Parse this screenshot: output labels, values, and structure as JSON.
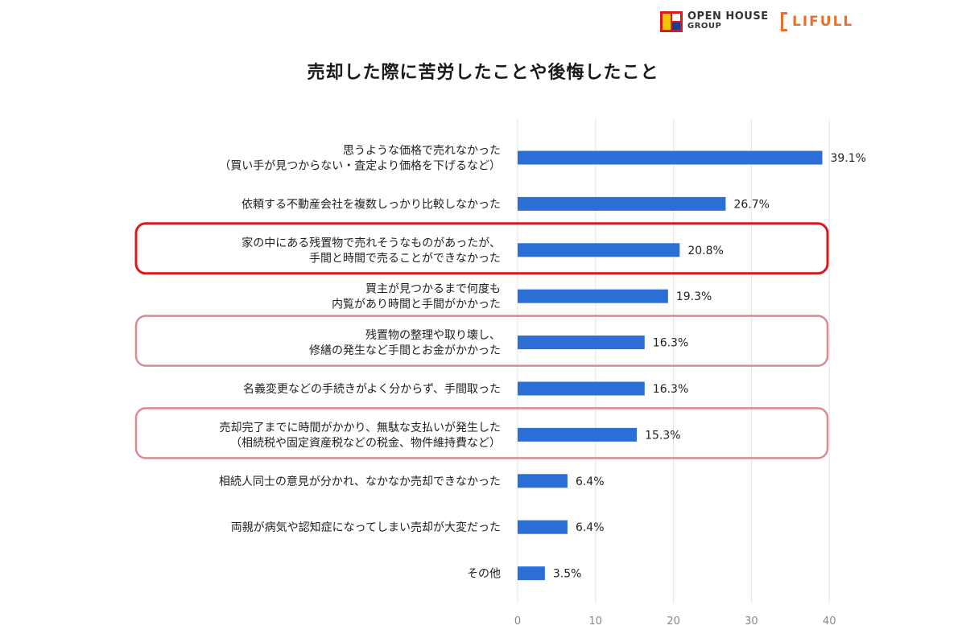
{
  "header": {
    "logos": {
      "openhouse": {
        "line1": "OPEN HOUSE",
        "line2": "GROUP"
      },
      "lifull": {
        "text": "LIFULL",
        "color": "#e8702e"
      }
    }
  },
  "colors": {
    "bar": "#2b6fd6",
    "highlight_strong": "#d9191e",
    "highlight_soft": "#d98a93"
  },
  "chart_data": {
    "type": "bar",
    "orientation": "horizontal",
    "title": "売却した際に苦労したことや後悔したこと",
    "categories": [
      [
        "思うような価格で売れなかった",
        "（買い手が見つからない・査定より価格を下げるなど）"
      ],
      [
        "依頼する不動産会社を複数しっかり比較しなかった"
      ],
      [
        "家の中にある残置物で売れそうなものがあったが、",
        "手間と時間で売ることができなかった"
      ],
      [
        "買主が見つかるまで何度も",
        "内覧があり時間と手間がかかった"
      ],
      [
        "残置物の整理や取り壊し、",
        "修繕の発生など手間とお金がかかった"
      ],
      [
        "名義変更などの手続きがよく分からず、手間取った"
      ],
      [
        "売却完了までに時間がかかり、無駄な支払いが発生した",
        "（相続税や固定資産税などの税金、物件維持費など）"
      ],
      [
        "相続人同士の意見が分かれ、なかなか売却できなかった"
      ],
      [
        "両親が病気や認知症になってしまい売却が大変だった"
      ],
      [
        "その他"
      ]
    ],
    "values": [
      39.1,
      26.7,
      20.8,
      19.3,
      16.3,
      16.3,
      15.3,
      6.4,
      6.4,
      3.5
    ],
    "value_labels": [
      "39.1%",
      "26.7%",
      "20.8%",
      "19.3%",
      "16.3%",
      "16.3%",
      "15.3%",
      "6.4%",
      "6.4%",
      "3.5%"
    ],
    "xlim": [
      0,
      40
    ],
    "xticks": [
      "0",
      "10",
      "20",
      "30",
      "40"
    ],
    "grid": "vertical",
    "highlights": [
      {
        "index": 2,
        "style": "strong"
      },
      {
        "index": 4,
        "style": "soft"
      },
      {
        "index": 6,
        "style": "soft"
      }
    ]
  }
}
